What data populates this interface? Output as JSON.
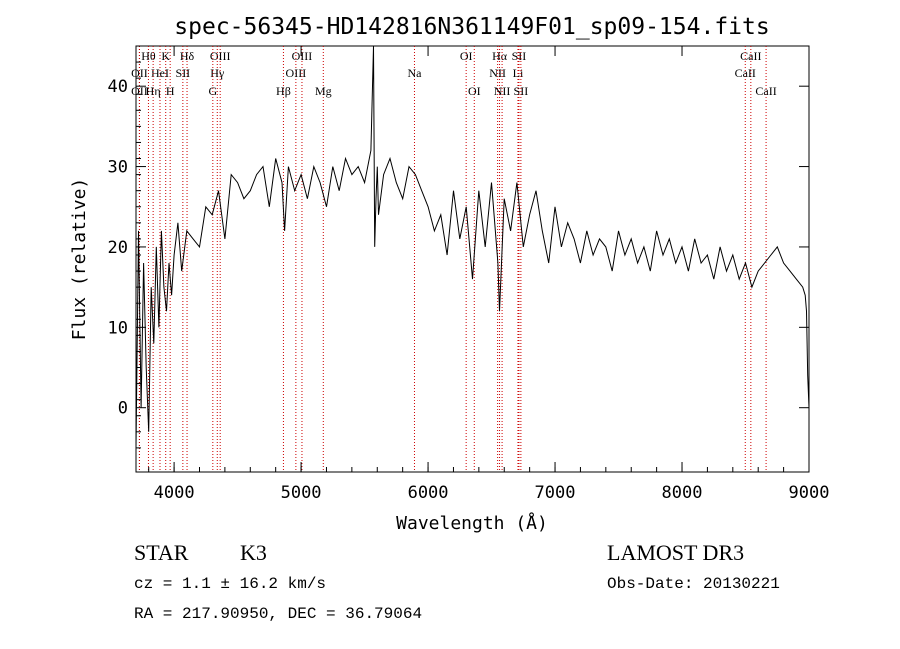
{
  "chart_data": {
    "type": "line",
    "title": "spec-56345-HD142816N361149F01_sp09-154.fits",
    "xlabel": "Wavelength (Å)",
    "ylabel": "Flux (relative)",
    "xlim": [
      3700,
      9000
    ],
    "ylim": [
      -8,
      45
    ],
    "xticks": [
      4000,
      5000,
      6000,
      7000,
      8000,
      9000
    ],
    "yticks": [
      0,
      10,
      20,
      30,
      40
    ],
    "series": [
      {
        "name": "flux",
        "x": [
          3700,
          3720,
          3740,
          3760,
          3780,
          3800,
          3820,
          3840,
          3860,
          3880,
          3900,
          3920,
          3940,
          3960,
          3980,
          4000,
          4030,
          4060,
          4100,
          4150,
          4200,
          4250,
          4300,
          4350,
          4400,
          4450,
          4500,
          4550,
          4600,
          4650,
          4700,
          4750,
          4800,
          4850,
          4870,
          4900,
          4950,
          5000,
          5050,
          5100,
          5150,
          5200,
          5250,
          5300,
          5350,
          5400,
          5450,
          5500,
          5550,
          5570,
          5580,
          5590,
          5600,
          5610,
          5650,
          5700,
          5750,
          5800,
          5850,
          5900,
          5950,
          6000,
          6050,
          6100,
          6150,
          6200,
          6250,
          6300,
          6350,
          6400,
          6450,
          6500,
          6550,
          6563,
          6600,
          6650,
          6700,
          6750,
          6800,
          6850,
          6900,
          6950,
          7000,
          7050,
          7100,
          7150,
          7200,
          7250,
          7300,
          7350,
          7400,
          7450,
          7500,
          7550,
          7600,
          7650,
          7700,
          7750,
          7800,
          7850,
          7900,
          7950,
          8000,
          8050,
          8100,
          8150,
          8200,
          8250,
          8300,
          8350,
          8400,
          8450,
          8500,
          8550,
          8600,
          8650,
          8700,
          8750,
          8800,
          8850,
          8900,
          8950,
          8970,
          8980,
          8990,
          9000
        ],
        "values": [
          -5,
          22,
          0,
          18,
          5,
          -3,
          15,
          8,
          20,
          10,
          22,
          15,
          12,
          18,
          14,
          19,
          23,
          17,
          22,
          21,
          20,
          25,
          24,
          27,
          21,
          29,
          28,
          26,
          27,
          29,
          30,
          25,
          31,
          28,
          22,
          30,
          27,
          29,
          26,
          30,
          28,
          25,
          30,
          27,
          31,
          29,
          30,
          28,
          32,
          45,
          20,
          26,
          30,
          24,
          29,
          31,
          28,
          26,
          30,
          29,
          27,
          25,
          22,
          24,
          19,
          27,
          21,
          25,
          16,
          27,
          20,
          28,
          18,
          12,
          26,
          22,
          28,
          20,
          24,
          27,
          22,
          18,
          25,
          20,
          23,
          21,
          18,
          22,
          19,
          21,
          20,
          17,
          22,
          19,
          21,
          18,
          20,
          17,
          22,
          19,
          21,
          18,
          20,
          17,
          21,
          18,
          19,
          16,
          20,
          17,
          19,
          16,
          18,
          15,
          17,
          18,
          19,
          20,
          18,
          17,
          16,
          15,
          14,
          12,
          4,
          0
        ]
      }
    ],
    "spectral_lines": [
      {
        "name": "Hθ",
        "wavelength": 3798,
        "row": 0
      },
      {
        "name": "OII",
        "wavelength": 3727,
        "row": 1
      },
      {
        "name": "OII",
        "wavelength": 3727,
        "row": 2
      },
      {
        "name": "K",
        "wavelength": 3934,
        "row": 0
      },
      {
        "name": "HeI",
        "wavelength": 3889,
        "row": 1
      },
      {
        "name": "Hη",
        "wavelength": 3835,
        "row": 2
      },
      {
        "name": "Hδ",
        "wavelength": 4102,
        "row": 0
      },
      {
        "name": "SII",
        "wavelength": 4069,
        "row": 1
      },
      {
        "name": "H",
        "wavelength": 3969,
        "row": 2
      },
      {
        "name": "OIII",
        "wavelength": 4363,
        "row": 0
      },
      {
        "name": "Hγ",
        "wavelength": 4340,
        "row": 1
      },
      {
        "name": "G",
        "wavelength": 4305,
        "row": 2
      },
      {
        "name": "Hβ",
        "wavelength": 4861,
        "row": 2
      },
      {
        "name": "OIII",
        "wavelength": 5007,
        "row": 0
      },
      {
        "name": "OIII",
        "wavelength": 4959,
        "row": 1
      },
      {
        "name": "Mg",
        "wavelength": 5175,
        "row": 2
      },
      {
        "name": "Na",
        "wavelength": 5893,
        "row": 1
      },
      {
        "name": "OI",
        "wavelength": 6300,
        "row": 0
      },
      {
        "name": "OI",
        "wavelength": 6364,
        "row": 2
      },
      {
        "name": "Hα",
        "wavelength": 6563,
        "row": 0
      },
      {
        "name": "NII",
        "wavelength": 6548,
        "row": 1
      },
      {
        "name": "NII",
        "wavelength": 6583,
        "row": 2
      },
      {
        "name": "SII",
        "wavelength": 6716,
        "row": 0
      },
      {
        "name": "Li",
        "wavelength": 6708,
        "row": 1
      },
      {
        "name": "SII",
        "wavelength": 6731,
        "row": 2
      },
      {
        "name": "CaII",
        "wavelength": 8542,
        "row": 0
      },
      {
        "name": "CaII",
        "wavelength": 8498,
        "row": 1
      },
      {
        "name": "CaII",
        "wavelength": 8662,
        "row": 2
      }
    ]
  },
  "info": {
    "class": "STAR",
    "subclass": "K3",
    "survey": "LAMOST DR3",
    "cz": "cz = 1.1 ± 16.2 km/s",
    "obs_date": "Obs-Date: 20130221",
    "radec": "RA = 217.90950, DEC =  36.79064"
  },
  "colors": {
    "line_marker": "#cc0000",
    "spectrum": "#000000"
  }
}
